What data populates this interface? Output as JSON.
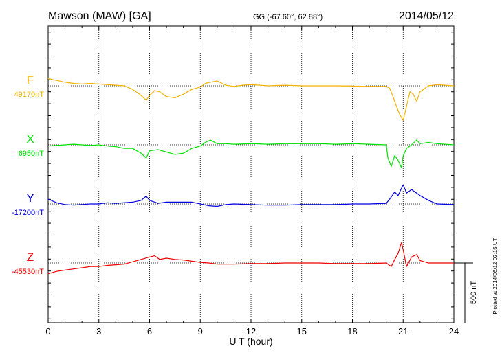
{
  "header": {
    "station": "Mawson (MAW)  [GA]",
    "coords": "GG (-67.60°,  62.88°)",
    "date": "2014/05/12"
  },
  "footer_note": "Plotted at 2014/06/12 02:15 UT",
  "chart_data": {
    "type": "line",
    "xlabel": "U T (hour)",
    "xlim": [
      0,
      24
    ],
    "xticks": [
      0,
      3,
      6,
      9,
      12,
      15,
      18,
      21,
      24
    ],
    "xtick_labels": [
      "0",
      "3",
      "6",
      "9",
      "12",
      "15",
      "18",
      "21",
      "24"
    ],
    "grid": true,
    "scale_bar": {
      "label": "500 nT",
      "value": 500
    },
    "series": [
      {
        "name": "F",
        "baseline_label": "49170nT",
        "baseline": 49170,
        "color": "#f5b000",
        "points": [
          [
            0,
            49230
          ],
          [
            0.5,
            49215
          ],
          [
            1,
            49200
          ],
          [
            1.5,
            49190
          ],
          [
            2,
            49185
          ],
          [
            2.5,
            49190
          ],
          [
            3,
            49185
          ],
          [
            3.5,
            49180
          ],
          [
            4,
            49175
          ],
          [
            4.5,
            49170
          ],
          [
            5,
            49140
          ],
          [
            5.5,
            49090
          ],
          [
            5.8,
            49050
          ],
          [
            6,
            49090
          ],
          [
            6.3,
            49130
          ],
          [
            6.6,
            49120
          ],
          [
            7,
            49080
          ],
          [
            7.5,
            49070
          ],
          [
            8,
            49100
          ],
          [
            8.5,
            49140
          ],
          [
            9,
            49160
          ],
          [
            9.3,
            49190
          ],
          [
            9.6,
            49200
          ],
          [
            10,
            49210
          ],
          [
            10.5,
            49175
          ],
          [
            11,
            49165
          ],
          [
            11.5,
            49175
          ],
          [
            12,
            49180
          ],
          [
            13,
            49170
          ],
          [
            14,
            49175
          ],
          [
            15,
            49170
          ],
          [
            16,
            49170
          ],
          [
            17,
            49170
          ],
          [
            18,
            49168
          ],
          [
            19,
            49165
          ],
          [
            20,
            49165
          ],
          [
            20.2,
            49150
          ],
          [
            20.4,
            49080
          ],
          [
            20.6,
            49000
          ],
          [
            20.8,
            48930
          ],
          [
            21,
            48880
          ],
          [
            21.2,
            49000
          ],
          [
            21.4,
            49120
          ],
          [
            21.6,
            49100
          ],
          [
            21.8,
            49040
          ],
          [
            22,
            49120
          ],
          [
            22.5,
            49170
          ],
          [
            23,
            49180
          ],
          [
            24,
            49170
          ]
        ]
      },
      {
        "name": "X",
        "baseline_label": "6950nT",
        "baseline": 6950,
        "color": "#00e000",
        "points": [
          [
            0,
            6940
          ],
          [
            0.5,
            6945
          ],
          [
            1,
            6950
          ],
          [
            1.5,
            6955
          ],
          [
            2,
            6950
          ],
          [
            2.5,
            6945
          ],
          [
            3,
            6950
          ],
          [
            3.5,
            6940
          ],
          [
            4,
            6935
          ],
          [
            4.5,
            6920
          ],
          [
            5,
            6920
          ],
          [
            5.5,
            6880
          ],
          [
            5.8,
            6840
          ],
          [
            6,
            6900
          ],
          [
            6.5,
            6910
          ],
          [
            7,
            6890
          ],
          [
            7.5,
            6870
          ],
          [
            8,
            6880
          ],
          [
            8.5,
            6920
          ],
          [
            9,
            6940
          ],
          [
            9.3,
            6970
          ],
          [
            9.6,
            6990
          ],
          [
            10,
            6960
          ],
          [
            10.5,
            6960
          ],
          [
            11,
            6955
          ],
          [
            12,
            6960
          ],
          [
            13,
            6955
          ],
          [
            14,
            6960
          ],
          [
            15,
            6960
          ],
          [
            16,
            6960
          ],
          [
            17,
            6955
          ],
          [
            18,
            6960
          ],
          [
            19,
            6955
          ],
          [
            20,
            6950
          ],
          [
            20.1,
            6840
          ],
          [
            20.3,
            6770
          ],
          [
            20.5,
            6860
          ],
          [
            20.7,
            6820
          ],
          [
            20.9,
            6760
          ],
          [
            21,
            6860
          ],
          [
            21.2,
            6920
          ],
          [
            21.5,
            6950
          ],
          [
            21.8,
            6990
          ],
          [
            22,
            6960
          ],
          [
            22.5,
            6970
          ],
          [
            23,
            6960
          ],
          [
            24,
            6950
          ]
        ]
      },
      {
        "name": "Y",
        "baseline_label": "-17200nT",
        "baseline": -17200,
        "color": "#0000e0",
        "points": [
          [
            0,
            -17160
          ],
          [
            0.5,
            -17190
          ],
          [
            1,
            -17205
          ],
          [
            1.5,
            -17210
          ],
          [
            2,
            -17205
          ],
          [
            2.5,
            -17200
          ],
          [
            3,
            -17200
          ],
          [
            3.5,
            -17190
          ],
          [
            4,
            -17195
          ],
          [
            5,
            -17185
          ],
          [
            5.5,
            -17170
          ],
          [
            5.8,
            -17135
          ],
          [
            6,
            -17170
          ],
          [
            6.5,
            -17195
          ],
          [
            7,
            -17185
          ],
          [
            8,
            -17185
          ],
          [
            8.5,
            -17185
          ],
          [
            9,
            -17200
          ],
          [
            9.5,
            -17215
          ],
          [
            10,
            -17220
          ],
          [
            10.5,
            -17205
          ],
          [
            11,
            -17200
          ],
          [
            12,
            -17205
          ],
          [
            13,
            -17210
          ],
          [
            14,
            -17210
          ],
          [
            15,
            -17205
          ],
          [
            16,
            -17205
          ],
          [
            17,
            -17205
          ],
          [
            18,
            -17200
          ],
          [
            19,
            -17200
          ],
          [
            20,
            -17195
          ],
          [
            20.2,
            -17160
          ],
          [
            20.5,
            -17100
          ],
          [
            20.7,
            -17130
          ],
          [
            20.9,
            -17070
          ],
          [
            21,
            -17040
          ],
          [
            21.2,
            -17110
          ],
          [
            21.5,
            -17080
          ],
          [
            22,
            -17130
          ],
          [
            22.5,
            -17170
          ],
          [
            23,
            -17200
          ],
          [
            24,
            -17205
          ]
        ]
      },
      {
        "name": "Z",
        "baseline_label": "-45530nT",
        "baseline": -45530,
        "color": "#ee0000",
        "points": [
          [
            0,
            -45620
          ],
          [
            0.5,
            -45600
          ],
          [
            1,
            -45590
          ],
          [
            1.5,
            -45580
          ],
          [
            2,
            -45570
          ],
          [
            2.5,
            -45560
          ],
          [
            3,
            -45560
          ],
          [
            3.5,
            -45550
          ],
          [
            4,
            -45545
          ],
          [
            4.5,
            -45540
          ],
          [
            5,
            -45520
          ],
          [
            5.5,
            -45500
          ],
          [
            6,
            -45480
          ],
          [
            6.3,
            -45470
          ],
          [
            6.6,
            -45500
          ],
          [
            7,
            -45490
          ],
          [
            7.5,
            -45500
          ],
          [
            8,
            -45505
          ],
          [
            8.5,
            -45515
          ],
          [
            9,
            -45525
          ],
          [
            9.5,
            -45530
          ],
          [
            10,
            -45540
          ],
          [
            10.5,
            -45540
          ],
          [
            11,
            -45540
          ],
          [
            12,
            -45535
          ],
          [
            13,
            -45535
          ],
          [
            14,
            -45530
          ],
          [
            15,
            -45530
          ],
          [
            16,
            -45530
          ],
          [
            17,
            -45535
          ],
          [
            18,
            -45535
          ],
          [
            19,
            -45535
          ],
          [
            20,
            -45530
          ],
          [
            20.3,
            -45560
          ],
          [
            20.5,
            -45500
          ],
          [
            20.7,
            -45450
          ],
          [
            20.9,
            -45360
          ],
          [
            21,
            -45420
          ],
          [
            21.2,
            -45560
          ],
          [
            21.5,
            -45480
          ],
          [
            21.8,
            -45460
          ],
          [
            22,
            -45510
          ],
          [
            22.5,
            -45530
          ],
          [
            23,
            -45530
          ],
          [
            24,
            -45530
          ]
        ]
      }
    ]
  }
}
